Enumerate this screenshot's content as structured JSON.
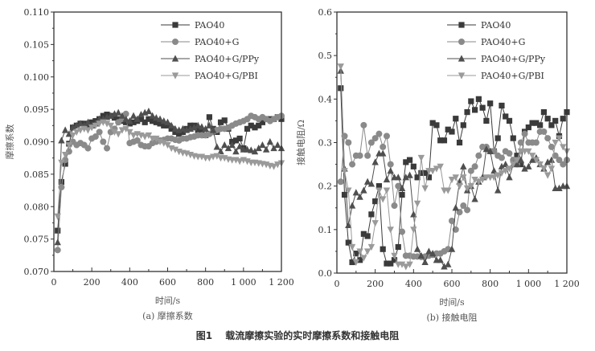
{
  "caption": {
    "figure_no": "图1",
    "text": "载流摩擦实验的实时摩擦系数和接触电阻"
  },
  "chart_data": [
    {
      "type": "line",
      "subtitle": "(a) 摩擦系数",
      "xlabel": "时间/s",
      "ylabel": "摩擦系数",
      "xlim": [
        0,
        1200
      ],
      "ylim": [
        0.07,
        0.11
      ],
      "xticks": [
        "0",
        "200",
        "400",
        "600",
        "800",
        "1 000",
        "1 200"
      ],
      "yticks": [
        "0.070",
        "0.075",
        "0.080",
        "0.085",
        "0.090",
        "0.095",
        "0.100",
        "0.105",
        "0.110"
      ],
      "grid": false,
      "legend": "top-right",
      "x": [
        20,
        40,
        60,
        80,
        100,
        120,
        140,
        160,
        180,
        200,
        220,
        240,
        260,
        280,
        300,
        320,
        340,
        360,
        380,
        400,
        420,
        440,
        460,
        480,
        500,
        520,
        540,
        560,
        580,
        600,
        620,
        640,
        660,
        680,
        700,
        720,
        740,
        760,
        780,
        800,
        820,
        840,
        860,
        880,
        900,
        920,
        940,
        960,
        980,
        1000,
        1020,
        1040,
        1060,
        1080,
        1100,
        1120,
        1140,
        1160,
        1180,
        1200
      ],
      "series": [
        {
          "name": "PAO40",
          "marker": "square",
          "color": "#3a3a3a",
          "values": [
            0.0763,
            0.0838,
            0.0866,
            0.0897,
            0.0922,
            0.0925,
            0.0928,
            0.0928,
            0.0925,
            0.093,
            0.0932,
            0.0935,
            0.094,
            0.0942,
            0.094,
            0.0937,
            0.0935,
            0.0932,
            0.093,
            0.0928,
            0.093,
            0.0932,
            0.0935,
            0.093,
            0.0935,
            0.0932,
            0.093,
            0.0928,
            0.0925,
            0.0925,
            0.092,
            0.0915,
            0.0912,
            0.0915,
            0.092,
            0.0925,
            0.0925,
            0.0918,
            0.0915,
            0.091,
            0.0938,
            0.092,
            0.0915,
            0.093,
            0.0933,
            0.092,
            0.09,
            0.0902,
            0.0905,
            0.089,
            0.092,
            0.0925,
            0.0922,
            0.0925,
            0.093,
            0.0935,
            0.0935,
            0.0935,
            0.0938,
            0.0935
          ]
        },
        {
          "name": "PAO40+G",
          "marker": "circle",
          "color": "#8a8a8a",
          "values": [
            0.0733,
            0.083,
            0.0872,
            0.0885,
            0.09,
            0.0895,
            0.0898,
            0.0895,
            0.089,
            0.0905,
            0.0908,
            0.0915,
            0.09,
            0.089,
            0.0915,
            0.092,
            0.093,
            0.0935,
            0.0943,
            0.0898,
            0.09,
            0.0902,
            0.0895,
            0.0893,
            0.0893,
            0.0898,
            0.09,
            0.0902,
            0.0903,
            0.0905,
            0.0905,
            0.0903,
            0.0902,
            0.0905,
            0.0905,
            0.0907,
            0.0908,
            0.091,
            0.091,
            0.091,
            0.0912,
            0.0915,
            0.0918,
            0.092,
            0.092,
            0.0922,
            0.0925,
            0.0928,
            0.093,
            0.0932,
            0.0935,
            0.094,
            0.0938,
            0.0935,
            0.0938,
            0.0935,
            0.0932,
            0.0935,
            0.0938,
            0.094
          ]
        },
        {
          "name": "PAO40+G/PPy",
          "marker": "triangle-up",
          "color": "#4f4f4f",
          "values": [
            0.0745,
            0.0902,
            0.0918,
            0.0912,
            0.0922,
            0.0925,
            0.0928,
            0.0925,
            0.093,
            0.0925,
            0.0928,
            0.0935,
            0.0935,
            0.0938,
            0.094,
            0.0943,
            0.0945,
            0.094,
            0.0935,
            0.0932,
            0.094,
            0.0935,
            0.0942,
            0.0945,
            0.0947,
            0.094,
            0.0937,
            0.0935,
            0.0932,
            0.093,
            0.0925,
            0.092,
            0.0918,
            0.092,
            0.0918,
            0.092,
            0.0922,
            0.0925,
            0.0923,
            0.092,
            0.0925,
            0.0918,
            0.0892,
            0.0885,
            0.0895,
            0.089,
            0.0895,
            0.0885,
            0.0893,
            0.0888,
            0.0888,
            0.0887,
            0.0885,
            0.089,
            0.0895,
            0.0888,
            0.09,
            0.089,
            0.0895,
            0.089
          ]
        },
        {
          "name": "PAO40+G/PBI",
          "marker": "triangle-down",
          "color": "#9a9a9a",
          "values": [
            0.0785,
            0.0868,
            0.088,
            0.0895,
            0.091,
            0.0915,
            0.0918,
            0.092,
            0.0918,
            0.0922,
            0.0925,
            0.0928,
            0.093,
            0.0928,
            0.0925,
            0.0915,
            0.0912,
            0.0918,
            0.092,
            0.0915,
            0.091,
            0.0912,
            0.091,
            0.0908,
            0.091,
            0.0905,
            0.0905,
            0.09,
            0.0898,
            0.0895,
            0.089,
            0.0888,
            0.0885,
            0.0883,
            0.0882,
            0.088,
            0.0878,
            0.0877,
            0.0877,
            0.0875,
            0.0875,
            0.0877,
            0.0878,
            0.0875,
            0.0875,
            0.0873,
            0.0872,
            0.0872,
            0.087,
            0.0872,
            0.087,
            0.0868,
            0.0868,
            0.0867,
            0.0866,
            0.0865,
            0.0863,
            0.0862,
            0.0865,
            0.0867
          ]
        }
      ]
    },
    {
      "type": "line",
      "subtitle": "(b) 接触电阻",
      "xlabel": "时间/s",
      "ylabel": "接触电阻/Ω",
      "xlim": [
        0,
        1200
      ],
      "ylim": [
        0.0,
        0.6
      ],
      "xticks": [
        "0",
        "200",
        "400",
        "600",
        "800",
        "1 000",
        "1 200"
      ],
      "yticks": [
        "0.0",
        "0.1",
        "0.2",
        "0.3",
        "0.4",
        "0.5",
        "0.6"
      ],
      "grid": false,
      "legend": "top-right",
      "x": [
        20,
        40,
        60,
        80,
        100,
        120,
        140,
        160,
        180,
        200,
        220,
        240,
        260,
        280,
        300,
        320,
        340,
        360,
        380,
        400,
        420,
        440,
        460,
        480,
        500,
        520,
        540,
        560,
        580,
        600,
        620,
        640,
        660,
        680,
        700,
        720,
        740,
        760,
        780,
        800,
        820,
        840,
        860,
        880,
        900,
        920,
        940,
        960,
        980,
        1000,
        1020,
        1040,
        1060,
        1080,
        1100,
        1120,
        1140,
        1160,
        1180,
        1200
      ],
      "series": [
        {
          "name": "PAO40",
          "marker": "square",
          "color": "#3a3a3a",
          "values": [
            0.425,
            0.18,
            0.07,
            0.025,
            0.045,
            0.03,
            0.09,
            0.085,
            0.135,
            0.165,
            0.2,
            0.055,
            0.022,
            0.022,
            0.03,
            0.06,
            0.18,
            0.255,
            0.26,
            0.245,
            0.22,
            0.23,
            0.23,
            0.22,
            0.345,
            0.34,
            0.305,
            0.305,
            0.33,
            0.325,
            0.355,
            0.3,
            0.34,
            0.37,
            0.395,
            0.375,
            0.4,
            0.38,
            0.35,
            0.39,
            0.28,
            0.31,
            0.385,
            0.36,
            0.35,
            0.31,
            0.27,
            0.25,
            0.325,
            0.335,
            0.345,
            0.345,
            0.34,
            0.37,
            0.355,
            0.34,
            0.35,
            0.315,
            0.355,
            0.37
          ]
        },
        {
          "name": "PAO40+G",
          "marker": "circle",
          "color": "#8a8a8a",
          "values": [
            0.21,
            0.315,
            0.3,
            0.25,
            0.27,
            0.27,
            0.34,
            0.27,
            0.3,
            0.31,
            0.32,
            0.29,
            0.315,
            0.25,
            0.155,
            0.2,
            0.095,
            0.04,
            0.04,
            0.038,
            0.038,
            0.037,
            0.038,
            0.04,
            0.042,
            0.045,
            0.045,
            0.05,
            0.055,
            0.12,
            0.1,
            0.14,
            0.155,
            0.145,
            0.235,
            0.245,
            0.27,
            0.29,
            0.29,
            0.28,
            0.28,
            0.27,
            0.265,
            0.28,
            0.275,
            0.26,
            0.25,
            0.3,
            0.32,
            0.3,
            0.3,
            0.3,
            0.325,
            0.325,
            0.31,
            0.29,
            0.27,
            0.26,
            0.25,
            0.26
          ]
        },
        {
          "name": "PAO40+G/PPy",
          "marker": "triangle-up",
          "color": "#4f4f4f",
          "values": [
            0.465,
            0.24,
            0.11,
            0.155,
            0.185,
            0.175,
            0.19,
            0.21,
            0.205,
            0.255,
            0.275,
            0.275,
            0.215,
            0.235,
            0.22,
            0.22,
            0.195,
            0.22,
            0.225,
            0.135,
            0.055,
            0.04,
            0.025,
            0.05,
            0.045,
            0.03,
            0.03,
            0.015,
            0.02,
            0.055,
            0.15,
            0.21,
            0.245,
            0.19,
            0.2,
            0.17,
            0.21,
            0.22,
            0.285,
            0.28,
            0.235,
            0.19,
            0.245,
            0.25,
            0.22,
            0.25,
            0.25,
            0.26,
            0.24,
            0.245,
            0.26,
            0.265,
            0.25,
            0.24,
            0.255,
            0.26,
            0.195,
            0.195,
            0.2,
            0.2
          ]
        },
        {
          "name": "PAO40+G/PBI",
          "marker": "triangle-down",
          "color": "#9a9a9a",
          "values": [
            0.475,
            0.235,
            0.19,
            0.06,
            0.025,
            0.05,
            0.035,
            0.05,
            0.06,
            0.115,
            0.19,
            0.17,
            0.19,
            0.1,
            0.04,
            0.02,
            0.02,
            0.015,
            0.02,
            0.1,
            0.16,
            0.265,
            0.195,
            0.235,
            0.235,
            0.24,
            0.245,
            0.19,
            0.19,
            0.215,
            0.22,
            0.2,
            0.22,
            0.195,
            0.2,
            0.215,
            0.21,
            0.215,
            0.22,
            0.22,
            0.22,
            0.225,
            0.23,
            0.235,
            0.24,
            0.25,
            0.26,
            0.28,
            0.28,
            0.28,
            0.27,
            0.26,
            0.25,
            0.24,
            0.225,
            0.24,
            0.3,
            0.31,
            0.29,
            0.28
          ]
        }
      ]
    }
  ]
}
